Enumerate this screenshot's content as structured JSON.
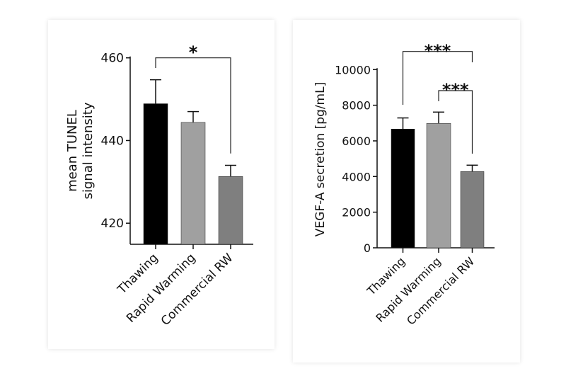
{
  "chart_data": [
    {
      "type": "bar",
      "title": "",
      "xlabel": "",
      "ylabel": "mean TUNEL signal intensity",
      "ylabel_lines": [
        "mean TUNEL",
        "signal intensity"
      ],
      "categories": [
        "Thawing",
        "Rapid Warming",
        "Commercial RW"
      ],
      "values": [
        448.9,
        444.4,
        431.3
      ],
      "error_upper": [
        454.7,
        447.0,
        434.0
      ],
      "colors": [
        "#000000",
        "#a0a0a0",
        "#7f7f7f"
      ],
      "ylim": [
        414.9,
        460
      ],
      "yticks": [
        420,
        440,
        460
      ],
      "grid": false,
      "significance": [
        {
          "from": 0,
          "to": 2,
          "label": "*"
        }
      ]
    },
    {
      "type": "bar",
      "title": "",
      "xlabel": "",
      "ylabel": "VEGF-A secretion [pg/mL]",
      "categories": [
        "Thawing",
        "Rapid Warming",
        "Commercial RW"
      ],
      "values": [
        6665,
        6980,
        4281
      ],
      "error_upper": [
        7288,
        7616,
        4637
      ],
      "colors": [
        "#000000",
        "#a0a0a0",
        "#7f7f7f"
      ],
      "ylim": [
        0,
        10000
      ],
      "yticks": [
        0,
        2000,
        4000,
        6000,
        8000,
        10000
      ],
      "grid": false,
      "significance": [
        {
          "from": 0,
          "to": 2,
          "label": "***"
        },
        {
          "from": 1,
          "to": 2,
          "label": "***"
        }
      ]
    }
  ]
}
